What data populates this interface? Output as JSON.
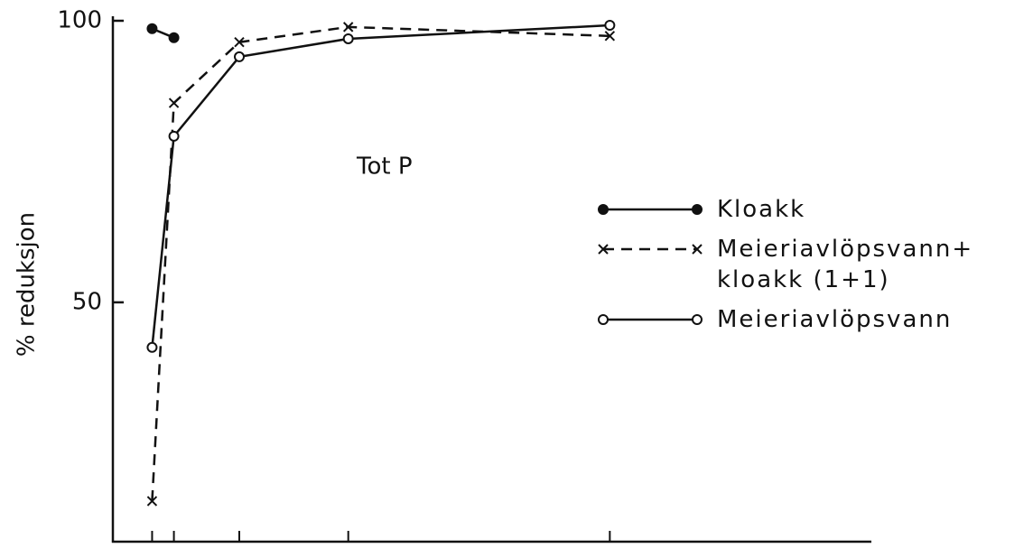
{
  "chart_data": {
    "type": "line",
    "annotation": "Tot P",
    "y_label": "% reduksjon",
    "x": [
      0.5,
      1,
      2.5,
      5,
      11
    ],
    "xlim": [
      -0.4,
      17
    ],
    "ylim": [
      7.5,
      100
    ],
    "yticks": [
      50,
      100
    ],
    "series": [
      {
        "name": "Kloakk",
        "color": "#111111",
        "marker": "filled-circle",
        "dash": false,
        "values": [
          98.6,
          97.0,
          null,
          null,
          null
        ]
      },
      {
        "name": "Meieriavlöpsvann+\nkloakk (1+1)",
        "color": "#111111",
        "marker": "cross",
        "dash": true,
        "values": [
          14.7,
          85.4,
          96.2,
          98.9,
          97.3
        ]
      },
      {
        "name": "Meieriavlöpsvann",
        "color": "#111111",
        "marker": "open-circle",
        "dash": false,
        "values": [
          42.0,
          79.5,
          93.6,
          96.8,
          99.2
        ]
      }
    ]
  }
}
